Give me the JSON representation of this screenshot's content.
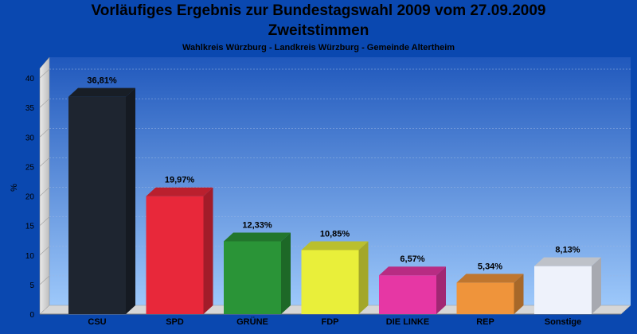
{
  "header": {
    "title_line1": "Vorläufiges Ergebnis zur Bundestagswahl 2009 vom 27.09.2009",
    "title_line2": "Zweitstimmen",
    "subtitle": "Wahlkreis Würzburg - Landkreis Würzburg - Gemeinde Altertheim"
  },
  "chart_data": {
    "type": "bar",
    "title": "Vorläufiges Ergebnis zur Bundestagswahl 2009 vom 27.09.2009 Zweitstimmen",
    "subtitle": "Wahlkreis Würzburg - Landkreis Würzburg - Gemeinde Altertheim",
    "ylabel": "%",
    "ylim": [
      0,
      40
    ],
    "yticks": [
      0,
      5,
      10,
      15,
      20,
      25,
      30,
      35,
      40
    ],
    "grid": true,
    "categories": [
      "CSU",
      "SPD",
      "GRÜNE",
      "FDP",
      "DIE LINKE",
      "REP",
      "Sonstige"
    ],
    "values": [
      36.81,
      19.97,
      12.33,
      10.85,
      6.57,
      5.34,
      8.13
    ],
    "value_labels": [
      "36,81%",
      "19,97%",
      "12,33%",
      "10,85%",
      "6,57%",
      "5,34%",
      "8,13%"
    ],
    "colors": [
      "#1e2530",
      "#e8283a",
      "#2a9437",
      "#e9ef3a",
      "#e637a4",
      "#ef943b",
      "#eef2fb"
    ]
  }
}
